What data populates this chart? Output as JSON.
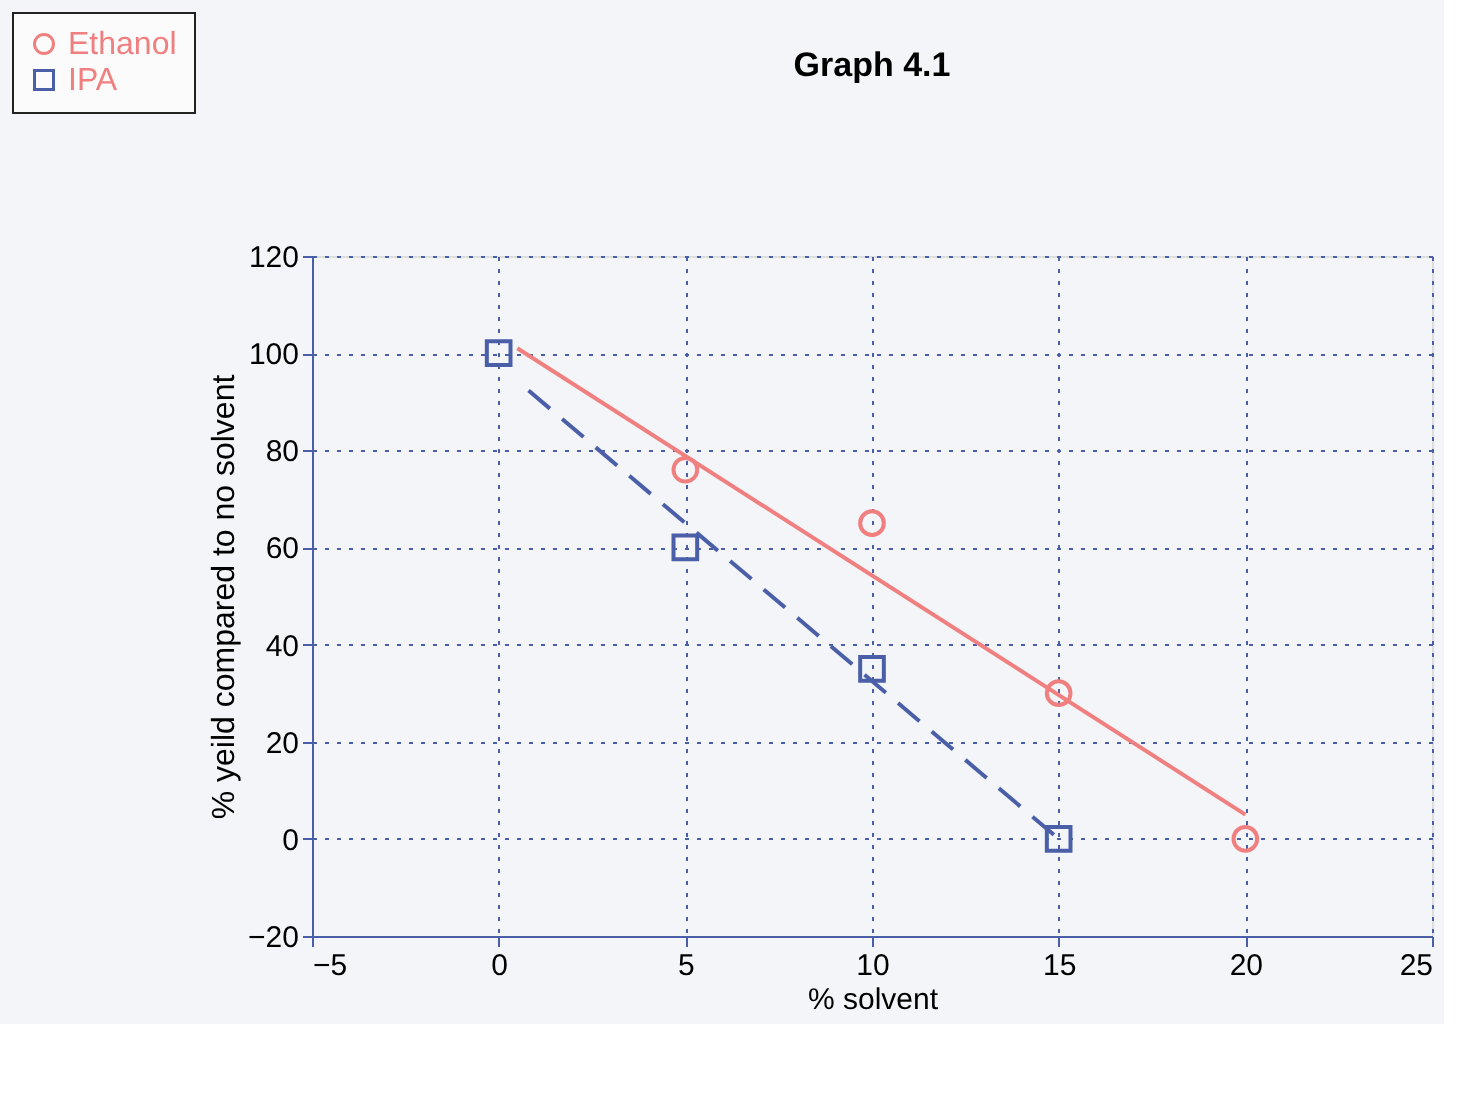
{
  "chart_data": {
    "type": "scatter",
    "title": "Graph 4.1",
    "xlabel": "% solvent",
    "ylabel": "% yeild compared to no solvent",
    "xlim": [
      -5,
      25
    ],
    "xticks": [
      -5,
      0,
      5,
      10,
      15,
      20,
      25
    ],
    "ylim": [
      -20,
      120
    ],
    "yticks": [
      -20,
      0,
      20,
      40,
      60,
      80,
      100,
      120
    ],
    "grid": true,
    "legend": "top left",
    "series": [
      {
        "name": "Ethanol",
        "type": "scatter",
        "color": "#f08080",
        "marker": "circle",
        "x": [
          5,
          10,
          15,
          20
        ],
        "values": [
          76,
          65,
          30,
          0
        ]
      },
      {
        "name": "IPA",
        "type": "scatter",
        "color": "#4a5fa8",
        "marker": "square",
        "x": [
          0,
          5,
          10,
          15
        ],
        "values": [
          100,
          60,
          35,
          0
        ]
      },
      {
        "type": "line",
        "color": "#f08080",
        "line_style": "solid",
        "x": [
          0.5,
          20
        ],
        "values": [
          101,
          5
        ]
      },
      {
        "type": "line",
        "color": "#4a5fa8",
        "line_style": "dashed",
        "x": [
          0.8,
          15
        ],
        "values": [
          92.3,
          0
        ]
      }
    ]
  }
}
